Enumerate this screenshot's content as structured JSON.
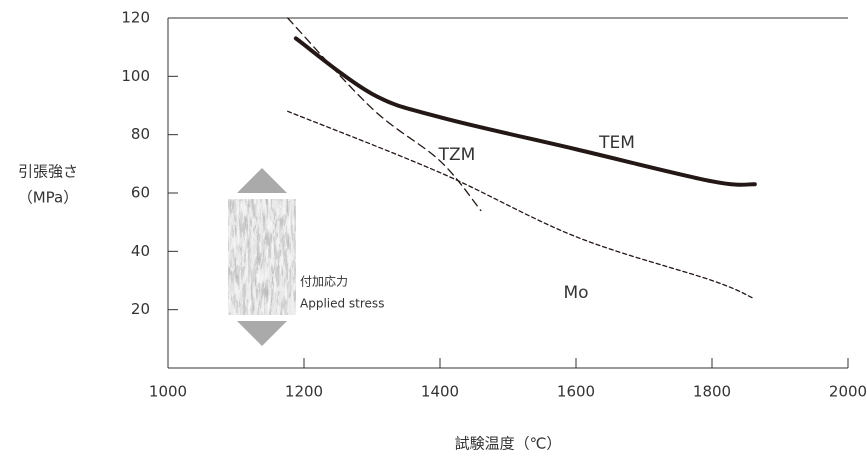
{
  "chart_data": {
    "type": "line",
    "y_label_line1": "引張強さ",
    "y_label_line2": "（MPa）",
    "x_label": "試験温度（℃）",
    "annotation_ja": "付加応力",
    "annotation_en": "Applied stress",
    "xlim": [
      1000,
      2000
    ],
    "xticks": [
      1000,
      1200,
      1400,
      1600,
      1800,
      2000
    ],
    "ylim": [
      0,
      120
    ],
    "yticks": [
      20,
      40,
      60,
      80,
      100,
      120
    ],
    "series": [
      {
        "name": "TEM",
        "color": "#231815",
        "style": "solid",
        "x": [
          1188,
          1300,
          1400,
          1600,
          1800,
          1863
        ],
        "values": [
          113,
          94,
          86,
          75,
          64,
          63
        ]
      },
      {
        "name": "TZM",
        "color": "#231815",
        "style": "dashed",
        "x": [
          1176,
          1300,
          1400,
          1460
        ],
        "values": [
          120,
          89,
          71,
          54
        ]
      },
      {
        "name": "Mo",
        "color": "#231815",
        "style": "dotted",
        "x": [
          1176,
          1400,
          1600,
          1800,
          1860
        ],
        "values": [
          88,
          67,
          45,
          30,
          24
        ]
      }
    ]
  }
}
